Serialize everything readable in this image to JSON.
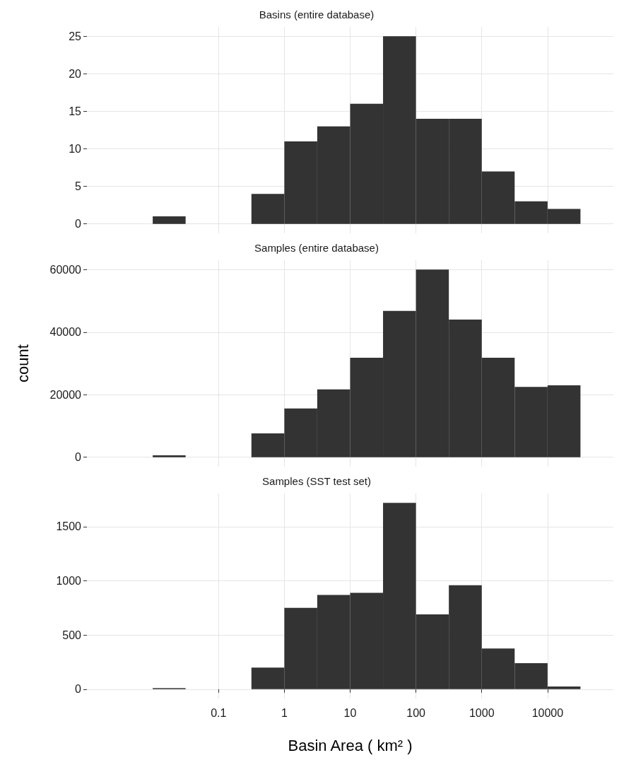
{
  "chart_data": [
    {
      "type": "histogram",
      "title": "Basins (entire database)",
      "color": "#333333",
      "log": "x",
      "grid": true,
      "tick_labels": "y",
      "bins": [
        0.01,
        0.0316,
        0.1,
        0.316,
        1,
        3.16,
        10,
        31.6,
        100,
        316,
        1000,
        3160,
        10000,
        31600
      ],
      "values": [
        1,
        0,
        0,
        4,
        11,
        13,
        16,
        25,
        14,
        14,
        7,
        3,
        2
      ],
      "xlim": [
        0.001,
        100000
      ],
      "xticks": [
        0.1,
        1,
        10,
        100,
        1000,
        10000
      ],
      "ylim": [
        -1.25,
        26.25
      ],
      "yticks": [
        0,
        5,
        10,
        15,
        20,
        25
      ]
    },
    {
      "type": "histogram",
      "title": "Samples (entire database)",
      "ylabel": "count",
      "color": "#333333",
      "log": "x",
      "grid": true,
      "tick_labels": "y",
      "bins": [
        0.01,
        0.0316,
        0.1,
        0.316,
        1,
        3.16,
        10,
        31.6,
        100,
        316,
        1000,
        3160,
        10000,
        31600
      ],
      "values": [
        600,
        0,
        0,
        7600,
        15600,
        21700,
        31800,
        46800,
        60000,
        44000,
        31800,
        22500,
        23000
      ],
      "xlim": [
        0.001,
        100000
      ],
      "xticks": [
        0.1,
        1,
        10,
        100,
        1000,
        10000
      ],
      "ylim": [
        -3000,
        63000
      ],
      "yticks": [
        0,
        20000,
        40000,
        60000
      ]
    },
    {
      "type": "histogram",
      "title": "Samples (SST test set)",
      "xlabel": "Basin Area ( km² )",
      "color": "#333333",
      "log": "x",
      "grid": true,
      "bins": [
        0.01,
        0.0316,
        0.1,
        0.316,
        1,
        3.16,
        10,
        31.6,
        100,
        316,
        1000,
        3160,
        10000,
        31600
      ],
      "values": [
        10,
        0,
        0,
        200,
        750,
        870,
        890,
        1720,
        690,
        960,
        375,
        240,
        25
      ],
      "xlim": [
        0.001,
        100000
      ],
      "xticks": [
        0.1,
        1,
        10,
        100,
        1000,
        10000
      ],
      "ylim": [
        -86,
        1806
      ],
      "yticks": [
        0,
        500,
        1000,
        1500
      ]
    }
  ]
}
